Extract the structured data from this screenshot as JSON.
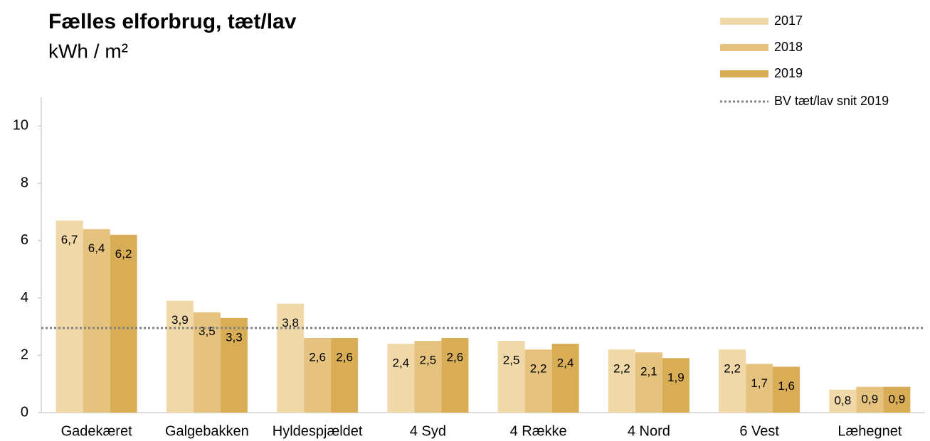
{
  "chart_data": {
    "type": "bar",
    "title": "Fælles elforbrug, tæt/lav",
    "subtitle": "kWh / m²",
    "categories": [
      "Gadekæret",
      "Galgebakken",
      "Hyldespjældet",
      "4 Syd",
      "4 Række",
      "4 Nord",
      "6 Vest",
      "Læhegnet"
    ],
    "series": [
      {
        "name": "2017",
        "color": "#f0d8a9",
        "values": [
          6.7,
          3.9,
          3.8,
          2.4,
          2.5,
          2.2,
          2.2,
          0.8
        ],
        "value_labels": [
          "6,7",
          "3,9",
          "3,8",
          "2,4",
          "2,5",
          "2,2",
          "2,2",
          "0,8"
        ]
      },
      {
        "name": "2018",
        "color": "#e6c27f",
        "values": [
          6.4,
          3.5,
          2.6,
          2.5,
          2.2,
          2.1,
          1.7,
          0.9
        ],
        "value_labels": [
          "6,4",
          "3,5",
          "2,6",
          "2,5",
          "2,2",
          "2,1",
          "1,7",
          "0,9"
        ]
      },
      {
        "name": "2019",
        "color": "#d9ac56",
        "values": [
          6.2,
          3.3,
          2.6,
          2.6,
          2.4,
          1.9,
          1.6,
          0.9
        ],
        "value_labels": [
          "6,2",
          "3,3",
          "2,6",
          "2,6",
          "2,4",
          "1,9",
          "1,6",
          "0,9"
        ]
      }
    ],
    "reference": {
      "name": "BV tæt/lav snit 2019",
      "value": 2.95,
      "color": "#808080"
    },
    "ylim": [
      0,
      11
    ],
    "yticks": [
      0,
      2,
      4,
      6,
      8,
      10
    ],
    "grid": false,
    "legend": "top-right"
  }
}
